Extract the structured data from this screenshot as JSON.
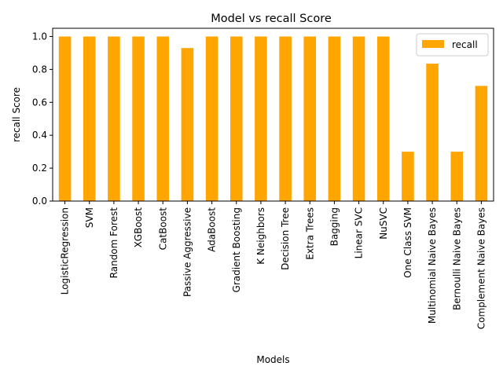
{
  "chart_data": {
    "type": "bar",
    "title": "Model vs recall Score",
    "xlabel": "Models",
    "ylabel": "recall Score",
    "categories": [
      "LogisticRegression",
      "SVM",
      "Random Forest",
      "XGBoost",
      "CatBoost",
      "Passive Aggressive",
      "AdaBoost",
      "Gradient Boosting",
      "K Neighbors",
      "Decision Tree",
      "Extra Trees",
      "Bagging",
      "Linear SVC",
      "NuSVC",
      "One Class SVM",
      "Multinomial Naive Bayes",
      "Bernoulli Naive Bayes",
      "Complement Naive Bayes"
    ],
    "series": [
      {
        "name": "recall",
        "color": "#ffa500",
        "values": [
          1.0,
          1.0,
          1.0,
          1.0,
          1.0,
          0.93,
          1.0,
          1.0,
          1.0,
          1.0,
          1.0,
          1.0,
          1.0,
          1.0,
          0.3,
          0.835,
          0.3,
          0.7
        ]
      }
    ],
    "ylim": [
      0,
      1.05
    ],
    "yticks": [
      "0.0",
      "0.2",
      "0.4",
      "0.6",
      "0.8",
      "1.0"
    ],
    "grid": false,
    "legend_position": "top-right"
  }
}
